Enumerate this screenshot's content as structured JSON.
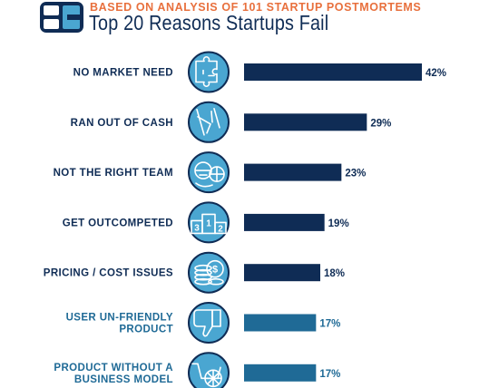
{
  "header": {
    "subtitle": "BASED ON ANALYSIS OF 101 STARTUP POSTMORTEMS",
    "title": "Top 20 Reasons Startups Fail"
  },
  "colors": {
    "accent": "#e8703d",
    "navy": "#0f2c55",
    "mid_blue": "#1f6a96",
    "icon_fill": "#4aa6d1",
    "icon_stroke": "#0f2c55"
  },
  "chart_data": {
    "type": "bar",
    "orientation": "horizontal",
    "title": "Top 20 Reasons Startups Fail",
    "subtitle": "BASED ON ANALYSIS OF 101 STARTUP POSTMORTEMS",
    "categories": [
      "NO MARKET NEED",
      "RAN OUT OF CASH",
      "NOT THE RIGHT TEAM",
      "GET OUTCOMPETED",
      "PRICING / COST ISSUES",
      "USER UN-FRIENDLY PRODUCT",
      "PRODUCT WITHOUT A BUSINESS MODEL"
    ],
    "category_lines": [
      [
        "NO MARKET NEED"
      ],
      [
        "RAN OUT OF CASH"
      ],
      [
        "NOT THE RIGHT TEAM"
      ],
      [
        "GET OUTCOMPETED"
      ],
      [
        "PRICING / COST ISSUES"
      ],
      [
        "USER UN-FRIENDLY",
        "PRODUCT"
      ],
      [
        "PRODUCT WITHOUT A",
        "BUSINESS MODEL"
      ]
    ],
    "values": [
      42,
      29,
      23,
      19,
      18,
      17,
      17
    ],
    "value_labels": [
      "42%",
      "29%",
      "23%",
      "19%",
      "18%",
      "17%",
      "17%"
    ],
    "bar_colors": [
      "#0f2c55",
      "#0f2c55",
      "#0f2c55",
      "#0f2c55",
      "#0f2c55",
      "#1f6a96",
      "#1f6a96"
    ],
    "label_colors": [
      "#0f2c55",
      "#0f2c55",
      "#0f2c55",
      "#0f2c55",
      "#0f2c55",
      "#1f6a96",
      "#1f6a96"
    ],
    "icons": [
      "puzzle-icon",
      "empty-pocket-icon",
      "team-icon",
      "podium-icon",
      "coins-icon",
      "thumbs-down-icon",
      "cart-icon"
    ],
    "unit": "%",
    "xlabel": "",
    "ylabel": "",
    "grid": false,
    "legend": "none"
  }
}
